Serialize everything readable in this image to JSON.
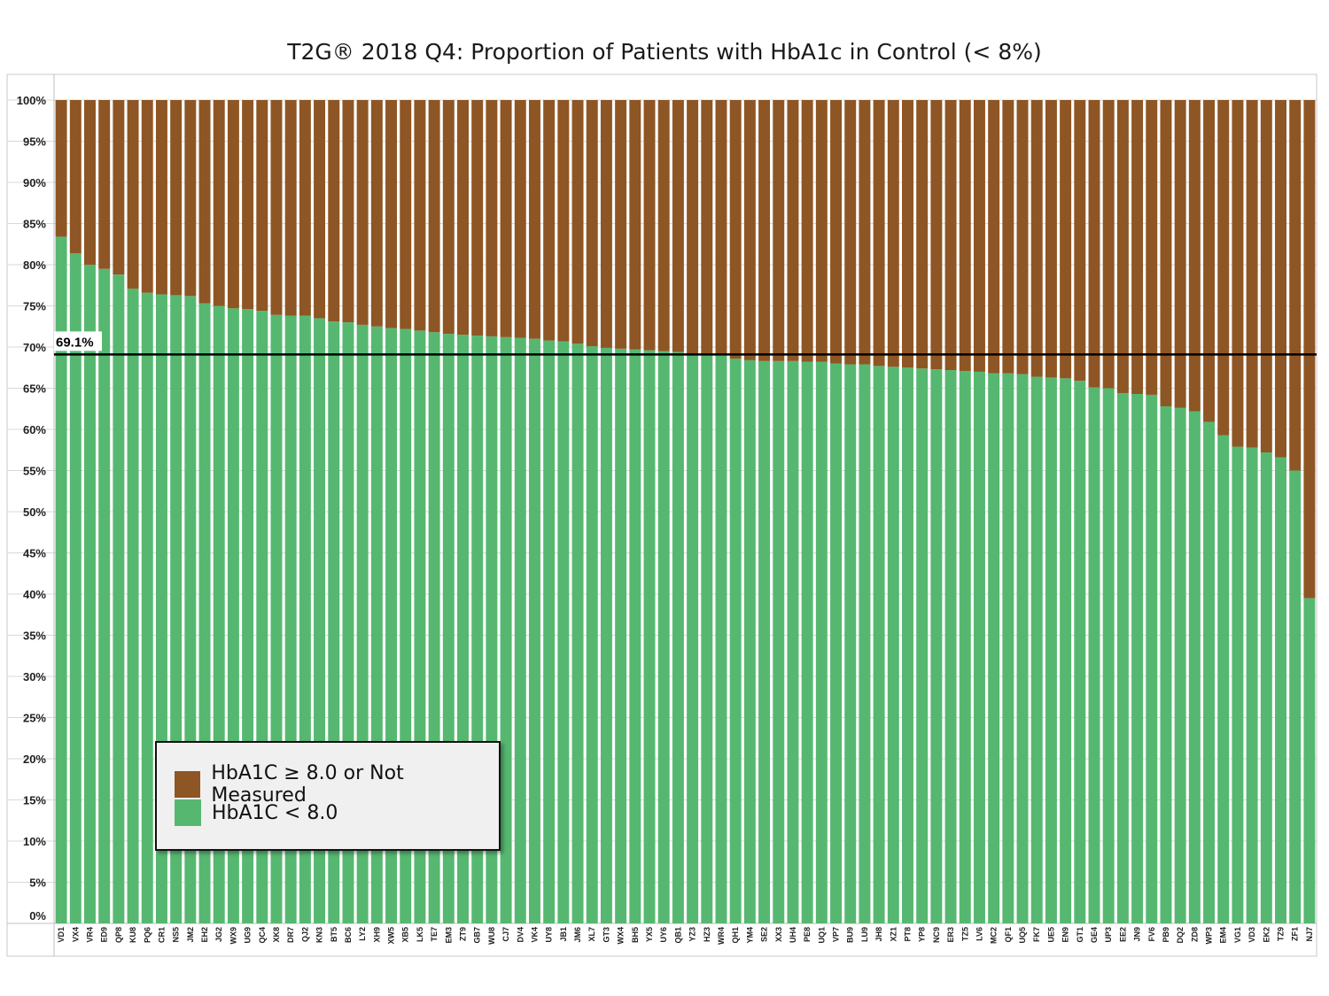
{
  "chart_data": {
    "type": "bar",
    "stacked": true,
    "title": "T2G® 2018 Q4: Proportion of Patients with HbA1c in Control (< 8%)",
    "xlabel": "",
    "ylabel": "",
    "ylim": [
      0,
      100
    ],
    "yticks": [
      "0%",
      "5%",
      "10%",
      "15%",
      "20%",
      "25%",
      "30%",
      "35%",
      "40%",
      "45%",
      "50%",
      "55%",
      "60%",
      "65%",
      "70%",
      "75%",
      "80%",
      "85%",
      "90%",
      "95%",
      "100%"
    ],
    "grid": true,
    "legend_position": "bottom-left",
    "categories": [
      "VD1",
      "VX4",
      "VR4",
      "ED9",
      "QP8",
      "KU8",
      "PQ6",
      "CR1",
      "NS5",
      "JM2",
      "EH2",
      "JG2",
      "WX9",
      "UG9",
      "QC4",
      "XK8",
      "DR7",
      "QJ2",
      "KN3",
      "BT5",
      "BC6",
      "LY2",
      "XH9",
      "XW5",
      "XB5",
      "LK5",
      "TE7",
      "EM3",
      "ZT9",
      "GB7",
      "WU8",
      "CJ7",
      "DV4",
      "VK4",
      "UY8",
      "JB1",
      "JM6",
      "XL7",
      "GT3",
      "WX4",
      "BH5",
      "YX5",
      "UY6",
      "QB1",
      "YZ3",
      "HZ3",
      "WR4",
      "QH1",
      "YM4",
      "SE2",
      "XX3",
      "UH4",
      "PE8",
      "UQ1",
      "VP7",
      "BU9",
      "LU9",
      "JH8",
      "XZ1",
      "PT8",
      "YP8",
      "NC9",
      "ER3",
      "TZ5",
      "LV6",
      "MC2",
      "QF1",
      "UQ5",
      "FK7",
      "UE5",
      "EN9",
      "GT1",
      "GE4",
      "UP3",
      "EE2",
      "JN9",
      "FV6",
      "PB9",
      "DQ2",
      "ZD8",
      "WP3",
      "EM4",
      "VG1",
      "VD3",
      "EK2",
      "TZ9",
      "ZF1",
      "NJ7"
    ],
    "series": [
      {
        "name": "HbA1C ≥ 8.0 or Not Measured",
        "color": "#8e5624",
        "values": [
          16.6,
          18.6,
          20.0,
          20.5,
          21.2,
          22.9,
          23.4,
          23.6,
          23.7,
          23.8,
          24.7,
          25.0,
          25.3,
          25.4,
          25.6,
          26.1,
          26.2,
          26.2,
          26.5,
          26.9,
          27.0,
          27.3,
          27.5,
          27.7,
          27.8,
          28.0,
          28.2,
          28.4,
          28.5,
          28.6,
          28.7,
          28.8,
          28.9,
          29.0,
          29.2,
          29.3,
          29.6,
          29.9,
          30.1,
          30.2,
          30.3,
          30.4,
          30.5,
          30.6,
          30.9,
          31.0,
          31.0,
          31.4,
          31.6,
          31.7,
          31.7,
          31.7,
          31.8,
          31.8,
          32.0,
          32.1,
          32.1,
          32.3,
          32.4,
          32.5,
          32.6,
          32.7,
          32.8,
          32.9,
          33.0,
          33.2,
          33.2,
          33.3,
          33.6,
          33.7,
          33.8,
          34.1,
          34.9,
          35.0,
          35.6,
          35.7,
          35.8,
          37.2,
          37.4,
          37.8,
          39.1,
          40.7,
          42.1,
          42.2,
          42.8,
          43.4,
          45.0,
          60.5
        ]
      },
      {
        "name": "HbA1C < 8.0",
        "color": "#56b870",
        "values": [
          83.4,
          81.4,
          80.0,
          79.5,
          78.8,
          77.1,
          76.6,
          76.4,
          76.3,
          76.2,
          75.3,
          75.0,
          74.7,
          74.6,
          74.4,
          73.9,
          73.8,
          73.8,
          73.5,
          73.1,
          73.0,
          72.7,
          72.5,
          72.3,
          72.2,
          72.0,
          71.8,
          71.6,
          71.5,
          71.4,
          71.3,
          71.2,
          71.1,
          71.0,
          70.8,
          70.7,
          70.4,
          70.1,
          69.9,
          69.8,
          69.7,
          69.6,
          69.5,
          69.4,
          69.1,
          69.0,
          69.0,
          68.6,
          68.4,
          68.3,
          68.3,
          68.3,
          68.2,
          68.2,
          68.0,
          67.9,
          67.9,
          67.7,
          67.6,
          67.5,
          67.4,
          67.3,
          67.2,
          67.1,
          67.0,
          66.8,
          66.8,
          66.7,
          66.4,
          66.3,
          66.2,
          65.9,
          65.1,
          65.0,
          64.4,
          64.3,
          64.2,
          62.8,
          62.6,
          62.2,
          60.9,
          59.3,
          57.9,
          57.8,
          57.2,
          56.6,
          55.0,
          39.5
        ]
      }
    ],
    "reference_line": {
      "value": 69.1,
      "label": "69.1%",
      "color": "#000000"
    }
  }
}
